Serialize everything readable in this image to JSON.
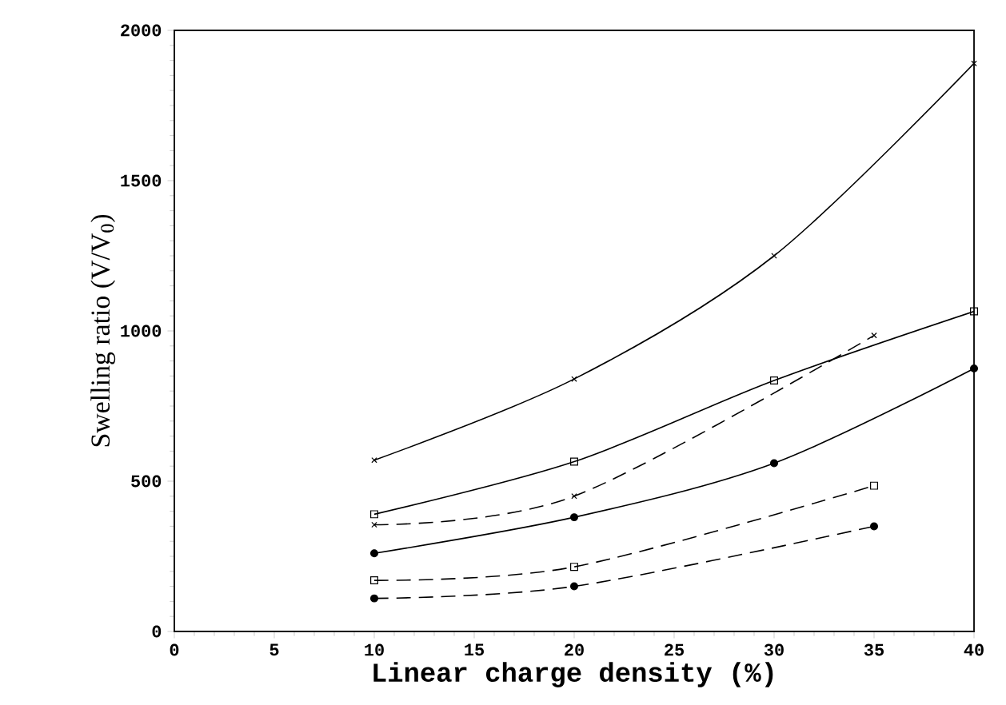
{
  "chart_data": {
    "type": "line",
    "xlabel": "Linear charge density (%)",
    "ylabel": "Swelling ratio (V/V$_{0}$)",
    "xlim": [
      0,
      40
    ],
    "xticks": [
      0,
      5,
      10,
      15,
      20,
      25,
      30,
      35,
      40
    ],
    "ylim": [
      0,
      2000
    ],
    "yticks": [
      0,
      500,
      1000,
      1500,
      2000
    ],
    "grid": false,
    "series": [
      {
        "color": "#000000",
        "marker": "cross",
        "line_style": "solid",
        "x": [
          10,
          20,
          30,
          40
        ],
        "values": [
          570,
          840,
          1250,
          1890
        ]
      },
      {
        "color": "#000000",
        "marker": "square",
        "line_style": "solid",
        "x": [
          10,
          20,
          30,
          40
        ],
        "values": [
          390,
          565,
          835,
          1065
        ]
      },
      {
        "color": "#000000",
        "marker": "cross",
        "line_style": "dashed",
        "x": [
          10,
          20,
          35
        ],
        "values": [
          355,
          450,
          985
        ]
      },
      {
        "color": "#000000",
        "marker": "circle",
        "line_style": "solid",
        "x": [
          10,
          20,
          30,
          40
        ],
        "values": [
          260,
          380,
          560,
          875
        ]
      },
      {
        "color": "#000000",
        "marker": "square",
        "line_style": "dashed",
        "x": [
          10,
          20,
          35
        ],
        "values": [
          170,
          215,
          485
        ]
      },
      {
        "color": "#000000",
        "marker": "circle",
        "line_style": "dashed",
        "x": [
          10,
          20,
          35
        ],
        "values": [
          110,
          150,
          350
        ]
      }
    ]
  }
}
